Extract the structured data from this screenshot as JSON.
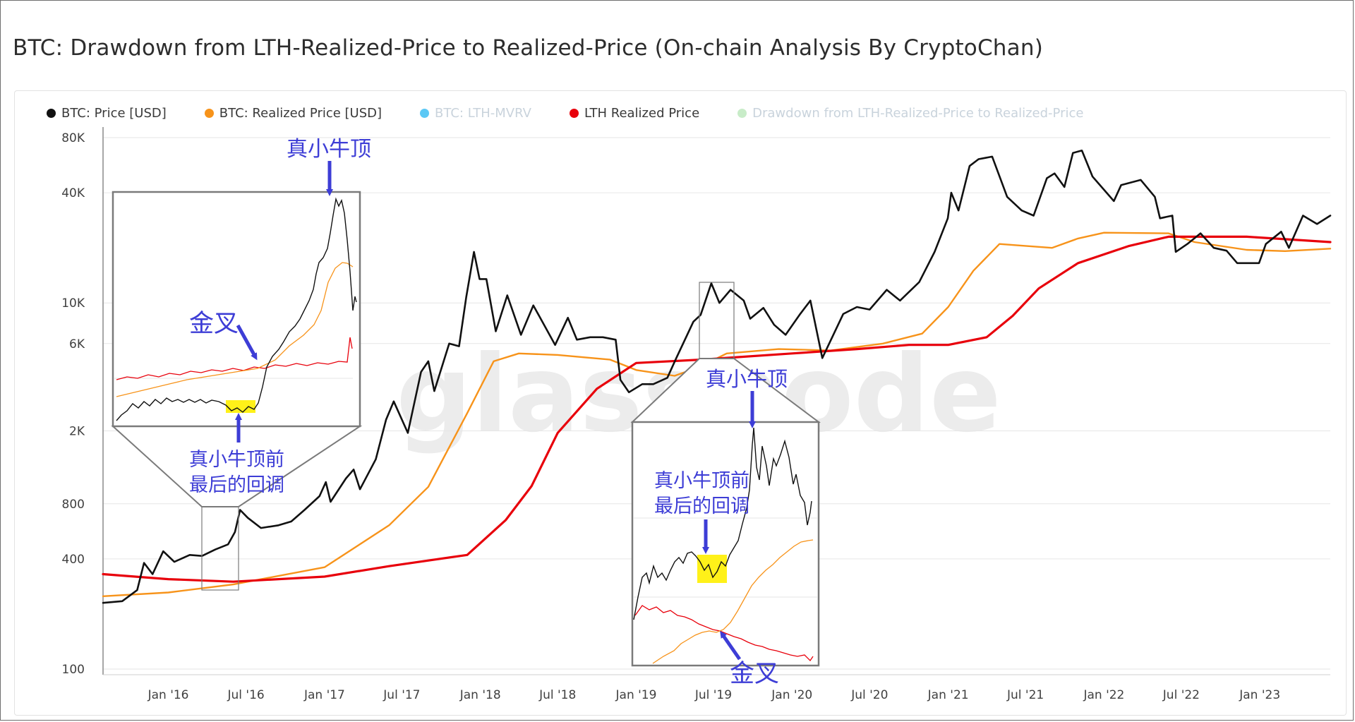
{
  "page": {
    "title": "BTC: Drawdown from LTH-Realized-Price to Realized-Price (On-chain Analysis By CryptoChan)"
  },
  "colors": {
    "price": "#000000",
    "realized": "#f7931a",
    "lth_mvrv": "#5bc8f5",
    "lth_realized": "#e8000b",
    "drawdown": "#c8ecc8",
    "annotation": "#3d3dd6",
    "highlight": "#fff000"
  },
  "legend": [
    {
      "label": "BTC: Price [USD]",
      "color": "#111111",
      "muted": false
    },
    {
      "label": "BTC: Realized Price [USD]",
      "color": "#f7931a",
      "muted": false
    },
    {
      "label": "BTC: LTH-MVRV",
      "color": "#5bc8f5",
      "muted": true
    },
    {
      "label": "LTH Realized Price",
      "color": "#e8000b",
      "muted": false
    },
    {
      "label": "Drawdown from LTH-Realized-Price to Realized-Price",
      "color": "#c8ecc8",
      "muted": true
    }
  ],
  "watermark": "glassnode",
  "annotations": {
    "top_left": "真小牛顶",
    "cross_left": "金叉",
    "pullback_left_1": "真小牛顶前",
    "pullback_left_2": "最后的回调",
    "top_right": "真小牛顶",
    "pullback_right_1": "真小牛顶前",
    "pullback_right_2": "最后的回调",
    "cross_right": "金叉"
  },
  "chart_data": {
    "type": "line",
    "yscale": "log",
    "ylim": [
      100,
      80000
    ],
    "yticks": [
      {
        "v": 100,
        "label": "100"
      },
      {
        "v": 400,
        "label": "400"
      },
      {
        "v": 800,
        "label": "800"
      },
      {
        "v": 2000,
        "label": "2K"
      },
      {
        "v": 6000,
        "label": "6K"
      },
      {
        "v": 10000,
        "label": "10K"
      },
      {
        "v": 40000,
        "label": "40K"
      },
      {
        "v": 80000,
        "label": "80K"
      }
    ],
    "xlim": [
      "2015-08-01",
      "2023-06-15"
    ],
    "xticks": [
      {
        "d": "2016-01-01",
        "label": "Jan '16"
      },
      {
        "d": "2016-07-01",
        "label": "Jul '16"
      },
      {
        "d": "2017-01-01",
        "label": "Jan '17"
      },
      {
        "d": "2017-07-01",
        "label": "Jul '17"
      },
      {
        "d": "2018-01-01",
        "label": "Jan '18"
      },
      {
        "d": "2018-07-01",
        "label": "Jul '18"
      },
      {
        "d": "2019-01-01",
        "label": "Jan '19"
      },
      {
        "d": "2019-07-01",
        "label": "Jul '19"
      },
      {
        "d": "2020-01-01",
        "label": "Jan '20"
      },
      {
        "d": "2020-07-01",
        "label": "Jul '20"
      },
      {
        "d": "2021-01-01",
        "label": "Jan '21"
      },
      {
        "d": "2021-07-01",
        "label": "Jul '21"
      },
      {
        "d": "2022-01-01",
        "label": "Jan '22"
      },
      {
        "d": "2022-07-01",
        "label": "Jul '22"
      },
      {
        "d": "2023-01-01",
        "label": "Jan '23"
      }
    ],
    "series": [
      {
        "name": "BTC: Price [USD]",
        "color": "#111111",
        "width": 2.6,
        "points": [
          [
            "2015-08-01",
            230
          ],
          [
            "2015-09-15",
            235
          ],
          [
            "2015-10-20",
            270
          ],
          [
            "2015-11-05",
            380
          ],
          [
            "2015-11-25",
            330
          ],
          [
            "2015-12-20",
            440
          ],
          [
            "2016-01-15",
            385
          ],
          [
            "2016-02-20",
            420
          ],
          [
            "2016-03-20",
            415
          ],
          [
            "2016-04-20",
            450
          ],
          [
            "2016-05-20",
            480
          ],
          [
            "2016-06-05",
            560
          ],
          [
            "2016-06-17",
            740
          ],
          [
            "2016-07-05",
            670
          ],
          [
            "2016-08-05",
            590
          ],
          [
            "2016-09-15",
            610
          ],
          [
            "2016-10-15",
            640
          ],
          [
            "2016-11-15",
            740
          ],
          [
            "2016-12-20",
            880
          ],
          [
            "2017-01-04",
            1050
          ],
          [
            "2017-01-15",
            820
          ],
          [
            "2017-02-20",
            1100
          ],
          [
            "2017-03-10",
            1230
          ],
          [
            "2017-03-25",
            960
          ],
          [
            "2017-05-01",
            1400
          ],
          [
            "2017-05-25",
            2300
          ],
          [
            "2017-06-12",
            2900
          ],
          [
            "2017-07-15",
            1950
          ],
          [
            "2017-08-15",
            4200
          ],
          [
            "2017-09-01",
            4800
          ],
          [
            "2017-09-15",
            3300
          ],
          [
            "2017-10-20",
            6000
          ],
          [
            "2017-11-12",
            5800
          ],
          [
            "2017-11-29",
            10800
          ],
          [
            "2017-12-17",
            19000
          ],
          [
            "2017-12-30",
            13500
          ],
          [
            "2018-01-15",
            13500
          ],
          [
            "2018-02-06",
            7000
          ],
          [
            "2018-03-05",
            11000
          ],
          [
            "2018-04-06",
            6700
          ],
          [
            "2018-05-05",
            9700
          ],
          [
            "2018-06-25",
            5900
          ],
          [
            "2018-07-25",
            8300
          ],
          [
            "2018-08-15",
            6300
          ],
          [
            "2018-09-15",
            6500
          ],
          [
            "2018-10-15",
            6500
          ],
          [
            "2018-11-14",
            6300
          ],
          [
            "2018-11-25",
            3800
          ],
          [
            "2018-12-15",
            3250
          ],
          [
            "2019-01-15",
            3600
          ],
          [
            "2019-02-10",
            3600
          ],
          [
            "2019-03-15",
            3900
          ],
          [
            "2019-04-05",
            5000
          ],
          [
            "2019-05-15",
            7900
          ],
          [
            "2019-06-01",
            8600
          ],
          [
            "2019-06-26",
            12800
          ],
          [
            "2019-07-15",
            10000
          ],
          [
            "2019-08-10",
            11800
          ],
          [
            "2019-09-10",
            10300
          ],
          [
            "2019-09-25",
            8200
          ],
          [
            "2019-10-26",
            9400
          ],
          [
            "2019-11-20",
            7600
          ],
          [
            "2019-12-17",
            6700
          ],
          [
            "2020-01-20",
            8700
          ],
          [
            "2020-02-13",
            10300
          ],
          [
            "2020-03-12",
            5000
          ],
          [
            "2020-04-30",
            8700
          ],
          [
            "2020-06-01",
            9500
          ],
          [
            "2020-07-01",
            9200
          ],
          [
            "2020-08-10",
            11800
          ],
          [
            "2020-09-10",
            10300
          ],
          [
            "2020-10-25",
            13000
          ],
          [
            "2020-11-30",
            19000
          ],
          [
            "2020-12-31",
            29000
          ],
          [
            "2021-01-08",
            40000
          ],
          [
            "2021-01-25",
            32000
          ],
          [
            "2021-02-20",
            56000
          ],
          [
            "2021-03-13",
            61000
          ],
          [
            "2021-04-14",
            63000
          ],
          [
            "2021-05-19",
            38000
          ],
          [
            "2021-06-22",
            32000
          ],
          [
            "2021-07-20",
            30000
          ],
          [
            "2021-08-20",
            48000
          ],
          [
            "2021-09-07",
            51000
          ],
          [
            "2021-09-30",
            43000
          ],
          [
            "2021-10-20",
            66000
          ],
          [
            "2021-11-10",
            68000
          ],
          [
            "2021-12-05",
            49000
          ],
          [
            "2022-01-24",
            36000
          ],
          [
            "2022-02-10",
            44000
          ],
          [
            "2022-03-28",
            47000
          ],
          [
            "2022-04-30",
            38000
          ],
          [
            "2022-05-12",
            29000
          ],
          [
            "2022-06-10",
            30000
          ],
          [
            "2022-06-18",
            19000
          ],
          [
            "2022-07-15",
            21000
          ],
          [
            "2022-08-15",
            24000
          ],
          [
            "2022-09-15",
            20000
          ],
          [
            "2022-10-15",
            19300
          ],
          [
            "2022-11-09",
            16500
          ],
          [
            "2022-12-30",
            16500
          ],
          [
            "2023-01-15",
            21000
          ],
          [
            "2023-02-20",
            24500
          ],
          [
            "2023-03-10",
            20000
          ],
          [
            "2023-04-12",
            30000
          ],
          [
            "2023-05-15",
            27000
          ],
          [
            "2023-06-15",
            30000
          ]
        ]
      },
      {
        "name": "BTC: Realized Price [USD]",
        "color": "#f7931a",
        "width": 2.4,
        "points": [
          [
            "2015-08-01",
            250
          ],
          [
            "2016-01-01",
            262
          ],
          [
            "2016-06-01",
            290
          ],
          [
            "2017-01-01",
            360
          ],
          [
            "2017-06-01",
            610
          ],
          [
            "2017-09-01",
            990
          ],
          [
            "2017-12-01",
            2500
          ],
          [
            "2018-02-01",
            4800
          ],
          [
            "2018-04-01",
            5300
          ],
          [
            "2018-07-01",
            5200
          ],
          [
            "2018-11-01",
            4900
          ],
          [
            "2019-01-01",
            4300
          ],
          [
            "2019-04-01",
            4000
          ],
          [
            "2019-06-01",
            4500
          ],
          [
            "2019-08-01",
            5300
          ],
          [
            "2019-12-01",
            5600
          ],
          [
            "2020-04-01",
            5500
          ],
          [
            "2020-08-01",
            6000
          ],
          [
            "2020-11-01",
            6800
          ],
          [
            "2021-01-01",
            9500
          ],
          [
            "2021-03-01",
            15000
          ],
          [
            "2021-05-01",
            21000
          ],
          [
            "2021-07-01",
            20500
          ],
          [
            "2021-09-01",
            20000
          ],
          [
            "2021-11-01",
            22500
          ],
          [
            "2022-01-01",
            24200
          ],
          [
            "2022-06-01",
            24000
          ],
          [
            "2022-08-01",
            21500
          ],
          [
            "2022-12-01",
            19500
          ],
          [
            "2023-03-01",
            19200
          ],
          [
            "2023-06-15",
            19800
          ]
        ]
      },
      {
        "name": "LTH Realized Price",
        "color": "#e8000b",
        "width": 3.2,
        "points": [
          [
            "2015-08-01",
            330
          ],
          [
            "2016-01-01",
            310
          ],
          [
            "2016-06-01",
            300
          ],
          [
            "2017-01-01",
            320
          ],
          [
            "2017-06-01",
            365
          ],
          [
            "2017-12-01",
            420
          ],
          [
            "2018-03-01",
            650
          ],
          [
            "2018-05-01",
            1000
          ],
          [
            "2018-07-01",
            1950
          ],
          [
            "2018-10-01",
            3400
          ],
          [
            "2019-01-01",
            4700
          ],
          [
            "2019-06-01",
            4900
          ],
          [
            "2020-01-01",
            5300
          ],
          [
            "2020-06-01",
            5600
          ],
          [
            "2020-10-01",
            5900
          ],
          [
            "2021-01-01",
            5900
          ],
          [
            "2021-04-01",
            6500
          ],
          [
            "2021-06-01",
            8500
          ],
          [
            "2021-08-01",
            12000
          ],
          [
            "2021-11-01",
            16500
          ],
          [
            "2022-03-01",
            20500
          ],
          [
            "2022-06-01",
            23000
          ],
          [
            "2022-12-01",
            23000
          ],
          [
            "2023-06-15",
            21500
          ]
        ]
      }
    ]
  }
}
